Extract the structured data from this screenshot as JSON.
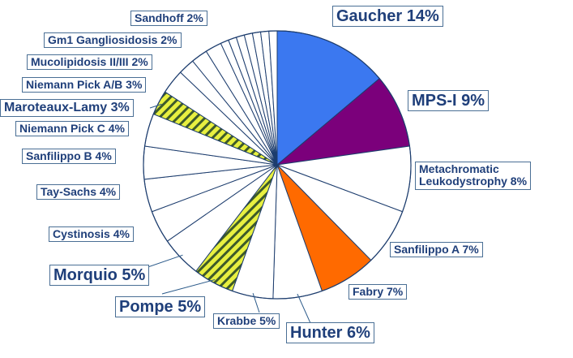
{
  "chart_data": {
    "type": "pie",
    "title": "",
    "slices": [
      {
        "label": "Gaucher 14%",
        "value": 14,
        "fill": "#3b78f0"
      },
      {
        "label": "MPS-I 9%",
        "value": 9,
        "fill": "#7b007b"
      },
      {
        "label": "Metachromatic\nLeukodystrophy 8%",
        "value": 8,
        "fill": "#ffffff"
      },
      {
        "label": "Sanfilippo A 7%",
        "value": 7,
        "fill": "#ffffff"
      },
      {
        "label": "Fabry 7%",
        "value": 7,
        "fill": "#ff6a00"
      },
      {
        "label": "Hunter 6%",
        "value": 6,
        "fill": "#ffffff"
      },
      {
        "label": "Krabbe 5%",
        "value": 5,
        "fill": "#ffffff"
      },
      {
        "label": "Pompe 5%",
        "value": 5,
        "fill": "stripes"
      },
      {
        "label": "Morquio 5%",
        "value": 5,
        "fill": "#ffffff"
      },
      {
        "label": "Cystinosis 4%",
        "value": 4,
        "fill": "#ffffff"
      },
      {
        "label": "Tay-Sachs 4%",
        "value": 4,
        "fill": "#ffffff"
      },
      {
        "label": "Sanfilippo B 4%",
        "value": 4,
        "fill": "#ffffff"
      },
      {
        "label": "Niemann Pick C 4%",
        "value": 4,
        "fill": "#ffffff"
      },
      {
        "label": "Maroteaux-Lamy 3%",
        "value": 3,
        "fill": "stripes"
      },
      {
        "label": "Niemann Pick A/B 3%",
        "value": 3,
        "fill": "#ffffff"
      },
      {
        "label": "Mucolipidosis II/III 2%",
        "value": 2,
        "fill": "#ffffff"
      },
      {
        "label": "Gm1 Gangliosidosis 2%",
        "value": 2,
        "fill": "#ffffff"
      },
      {
        "label": "Sandhoff 2%",
        "value": 2,
        "fill": "#ffffff"
      },
      {
        "label": "",
        "value": 1,
        "fill": "#ffffff"
      },
      {
        "label": "",
        "value": 1,
        "fill": "#ffffff"
      },
      {
        "label": "",
        "value": 1,
        "fill": "#ffffff"
      },
      {
        "label": "",
        "value": 1,
        "fill": "#ffffff"
      },
      {
        "label": "",
        "value": 1,
        "fill": "#ffffff"
      },
      {
        "label": "",
        "value": 1,
        "fill": "#ffffff"
      },
      {
        "label": "",
        "value": 1,
        "fill": "#ffffff"
      }
    ]
  }
}
